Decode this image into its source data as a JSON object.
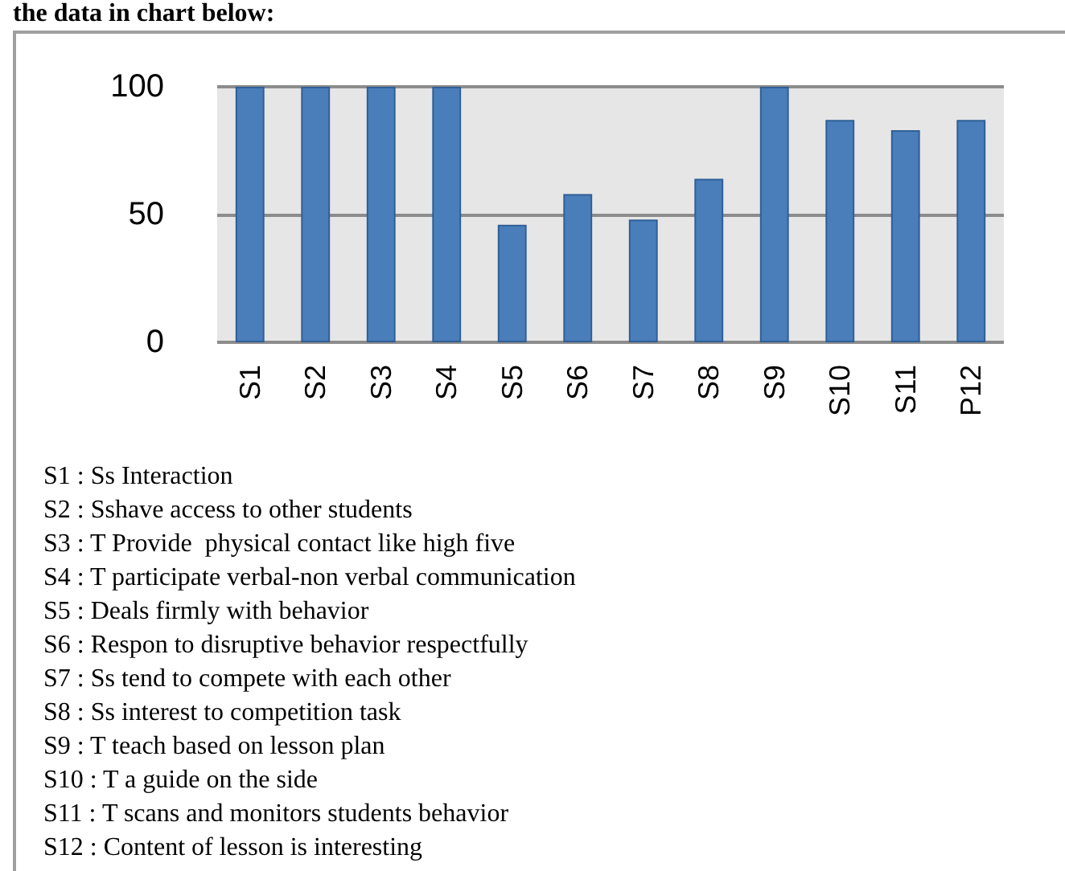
{
  "chart_data": {
    "type": "bar",
    "categories": [
      "S1",
      "S2",
      "S3",
      "S4",
      "S5",
      "S6",
      "S7",
      "S8",
      "S9",
      "S10",
      "S11",
      "P12"
    ],
    "values": [
      100,
      100,
      100,
      100,
      46,
      58,
      48,
      64,
      100,
      87,
      83,
      87
    ],
    "color": "#4a7ebb",
    "ylim": [
      0,
      100
    ],
    "yticks": [
      0,
      50,
      100
    ],
    "grid": "y",
    "annotations": [
      "the data in chart below:",
      "S1 : Ss Interaction",
      "S2 : Sshave access to other students",
      "S3 : T Provide  physical contact like high five",
      "S4 : T participate verbal-non verbal communication",
      "S5 : Deals firmly with behavior",
      "S6 : Respon to disruptive behavior respectfully",
      "S7 : Ss tend to compete with each other",
      "S8 : Ss interest to competition task",
      "S9 : T teach based on lesson plan",
      "S10 : T a guide on the side",
      "S11 : T scans and monitors students behavior",
      "S12 : Content of lesson is interesting"
    ]
  }
}
